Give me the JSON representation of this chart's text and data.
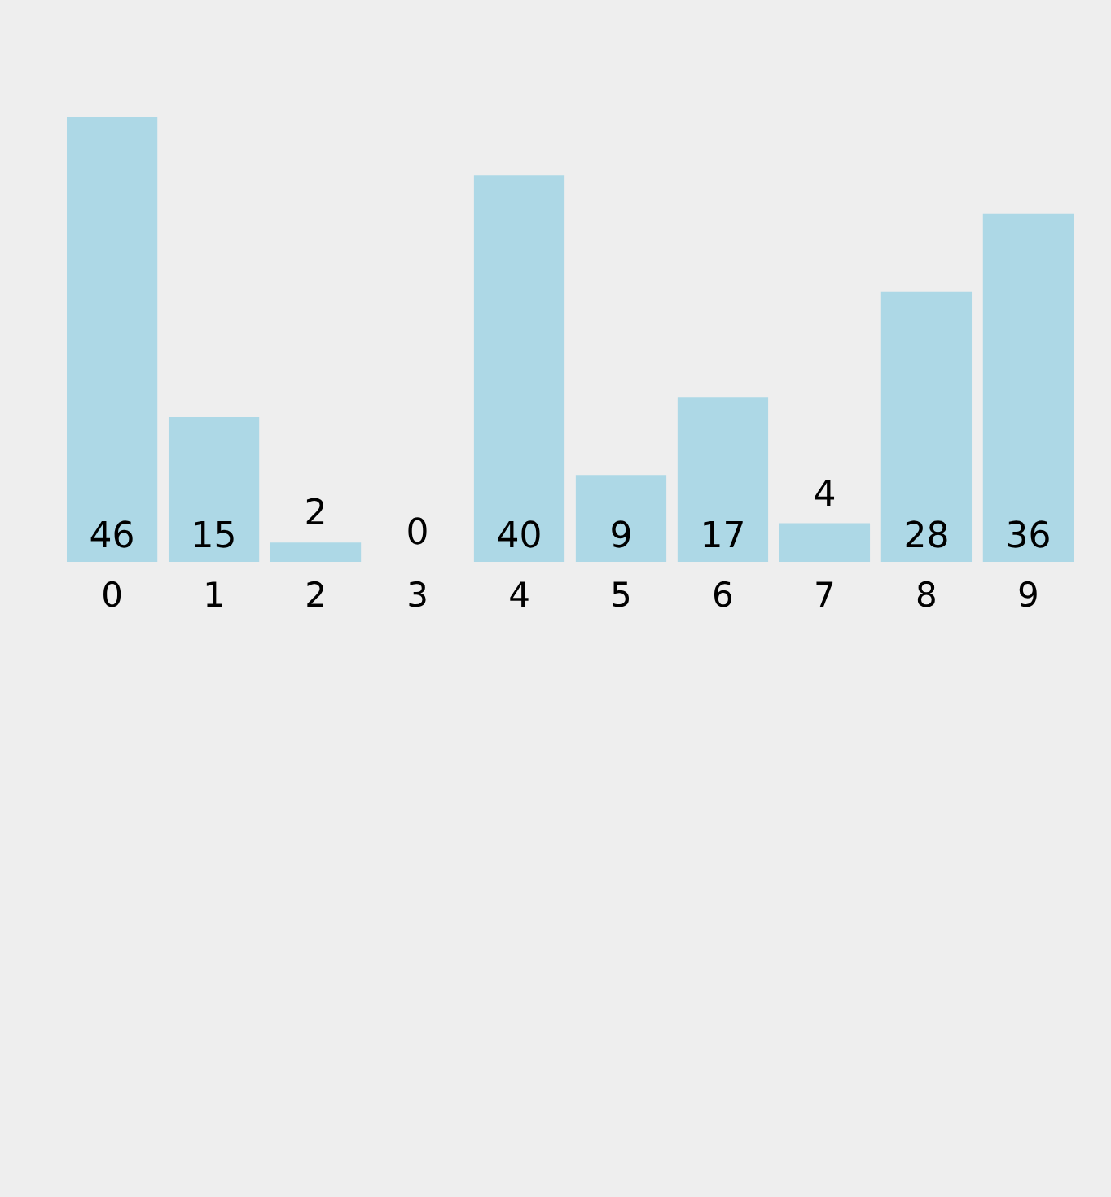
{
  "chart_data": {
    "type": "bar",
    "categories": [
      "0",
      "1",
      "2",
      "3",
      "4",
      "5",
      "6",
      "7",
      "8",
      "9"
    ],
    "values": [
      46,
      15,
      2,
      0,
      40,
      9,
      17,
      4,
      28,
      36
    ],
    "color": "#add8e6",
    "data_labels": true,
    "grid": false
  }
}
